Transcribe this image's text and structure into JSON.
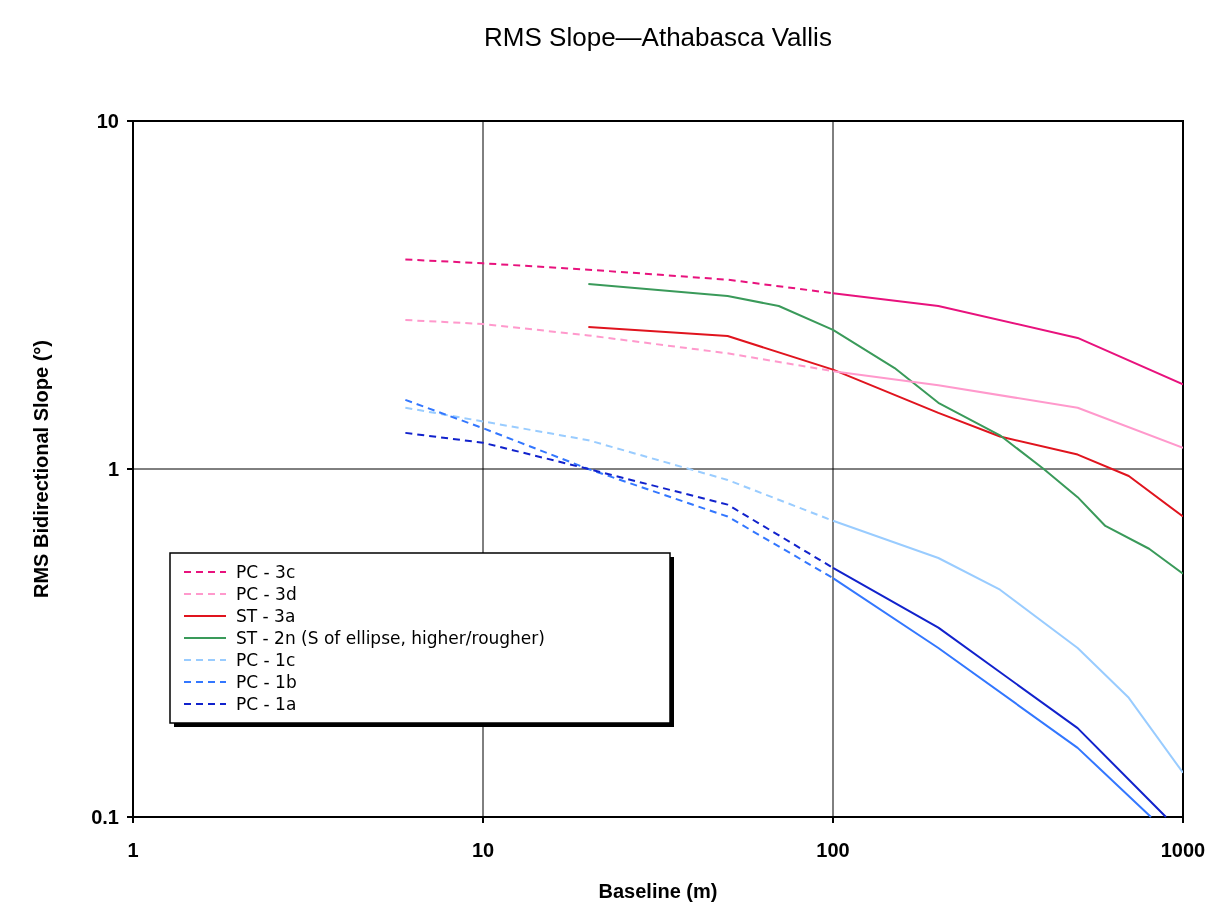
{
  "chart_data": {
    "type": "line",
    "title": "RMS Slope—Athabasca Vallis",
    "xlabel": "Baseline (m)",
    "ylabel": "RMS Bidirectional Slope (°)",
    "log": "xy",
    "xlim": [
      1,
      1000
    ],
    "xticks": [
      1,
      10,
      100,
      1000
    ],
    "ylim": [
      0.1,
      10
    ],
    "yticks": [
      0.1,
      1,
      10
    ],
    "grid": true,
    "legend": "bottom left",
    "marker": "none",
    "series": [
      {
        "name": "PC - 3c",
        "color": "#e8127d",
        "line_style": "dashed",
        "x": [
          6,
          10,
          20,
          50,
          100
        ],
        "values": [
          4.0,
          3.9,
          3.74,
          3.5,
          3.2
        ]
      },
      {
        "name": "PC - 3d",
        "color": "#ff99cc",
        "line_style": "dashed",
        "x": [
          6,
          10,
          20,
          50,
          100
        ],
        "values": [
          2.68,
          2.61,
          2.42,
          2.15,
          1.91
        ]
      },
      {
        "name": "ST - 3a",
        "color": "#e0141e",
        "line_style": "solid",
        "x": [
          20,
          50,
          100,
          200,
          300,
          500,
          700,
          1000
        ],
        "values": [
          2.56,
          2.41,
          1.93,
          1.45,
          1.24,
          1.1,
          0.955,
          0.73
        ]
      },
      {
        "name": "ST - 2n (S of ellipse, higher/rougher)",
        "color": "#3a9a5a",
        "line_style": "solid",
        "x": [
          20,
          50,
          70,
          100,
          150,
          200,
          300,
          400,
          500,
          600,
          800,
          1000
        ],
        "values": [
          3.4,
          3.14,
          2.94,
          2.51,
          1.95,
          1.55,
          1.25,
          1.0,
          0.83,
          0.686,
          0.59,
          0.5
        ]
      },
      {
        "name": "PC - 1c",
        "color": "#99ccff",
        "line_style": "dashed",
        "x": [
          6,
          10,
          20,
          50,
          100
        ],
        "values": [
          1.5,
          1.37,
          1.21,
          0.93,
          0.71
        ]
      },
      {
        "name": "PC - 1b",
        "color": "#3377ff",
        "line_style": "dashed",
        "x": [
          6,
          10,
          20,
          50,
          100
        ],
        "values": [
          1.58,
          1.31,
          1.0,
          0.73,
          0.486
        ]
      },
      {
        "name": "PC - 1a",
        "color": "#1122cc",
        "line_style": "dashed",
        "x": [
          6,
          10,
          20,
          50,
          100
        ],
        "values": [
          1.27,
          1.19,
          1.0,
          0.79,
          0.52
        ]
      },
      {
        "color": "#e8127d",
        "line_style": "solid",
        "x": [
          100,
          200,
          500,
          1000
        ],
        "values": [
          3.2,
          2.94,
          2.38,
          1.75
        ]
      },
      {
        "color": "#ff99cc",
        "line_style": "solid",
        "x": [
          100,
          200,
          500,
          1000
        ],
        "values": [
          1.91,
          1.74,
          1.5,
          1.15
        ]
      },
      {
        "color": "#99ccff",
        "line_style": "solid",
        "x": [
          100,
          200,
          300,
          500,
          700,
          1000
        ],
        "values": [
          0.71,
          0.555,
          0.45,
          0.306,
          0.22,
          0.134
        ]
      },
      {
        "color": "#3377ff",
        "line_style": "solid",
        "x": [
          100,
          200,
          500,
          810
        ],
        "values": [
          0.486,
          0.306,
          0.158,
          0.1
        ]
      },
      {
        "color": "#1122cc",
        "line_style": "solid",
        "x": [
          100,
          200,
          500,
          894
        ],
        "values": [
          0.52,
          0.35,
          0.18,
          0.1
        ]
      }
    ]
  }
}
